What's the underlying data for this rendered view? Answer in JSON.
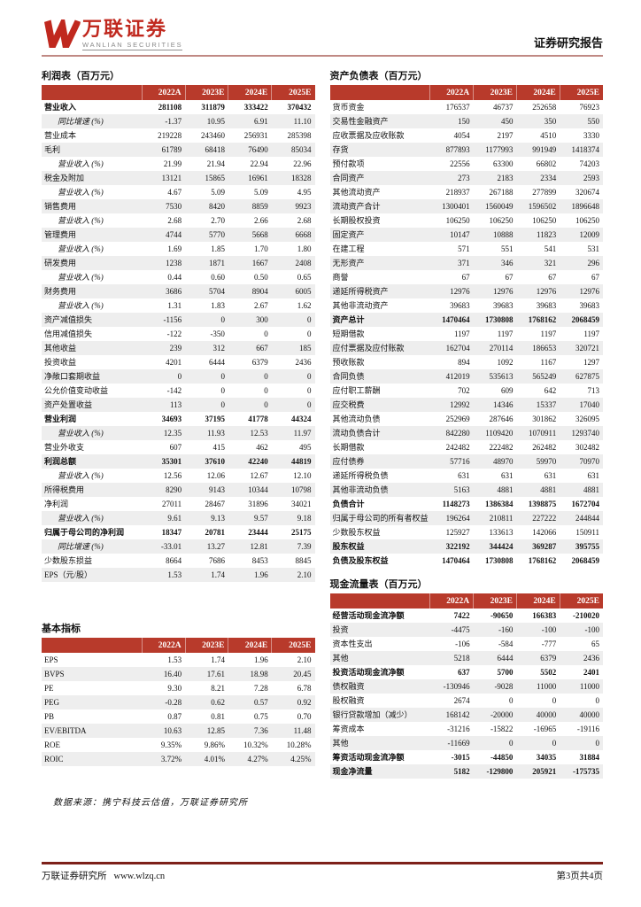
{
  "colors": {
    "accent_red": "#b83a2b",
    "logo_red": "#c0281e",
    "divider_light": "#c08984",
    "footer_line": "#7d211a",
    "row_stripe": "#eeeeee"
  },
  "header": {
    "logo": {
      "cn": "万联证券",
      "en": "WANLIAN SECURITIES"
    },
    "report_type": "证券研究报告"
  },
  "income_statement": {
    "title": "利润表（百万元）",
    "columns": [
      "2022A",
      "2023E",
      "2024E",
      "2025E"
    ],
    "rows": [
      {
        "label": "营业收入",
        "style": "bold",
        "values": [
          "281108",
          "311879",
          "333422",
          "370432"
        ]
      },
      {
        "label": "同比增速 (%)",
        "style": "sub",
        "values": [
          "-1.37",
          "10.95",
          "6.91",
          "11.10"
        ]
      },
      {
        "label": "营业成本",
        "style": "normal",
        "values": [
          "219228",
          "243460",
          "256931",
          "285398"
        ]
      },
      {
        "label": "毛利",
        "style": "normal",
        "values": [
          "61789",
          "68418",
          "76490",
          "85034"
        ]
      },
      {
        "label": "营业收入 (%)",
        "style": "sub",
        "values": [
          "21.99",
          "21.94",
          "22.94",
          "22.96"
        ]
      },
      {
        "label": "税金及附加",
        "style": "normal",
        "values": [
          "13121",
          "15865",
          "16961",
          "18328"
        ]
      },
      {
        "label": "营业收入 (%)",
        "style": "sub",
        "values": [
          "4.67",
          "5.09",
          "5.09",
          "4.95"
        ]
      },
      {
        "label": "销售费用",
        "style": "normal",
        "values": [
          "7530",
          "8420",
          "8859",
          "9923"
        ]
      },
      {
        "label": "营业收入 (%)",
        "style": "sub",
        "values": [
          "2.68",
          "2.70",
          "2.66",
          "2.68"
        ]
      },
      {
        "label": "管理费用",
        "style": "normal",
        "values": [
          "4744",
          "5770",
          "5668",
          "6668"
        ]
      },
      {
        "label": "营业收入 (%)",
        "style": "sub",
        "values": [
          "1.69",
          "1.85",
          "1.70",
          "1.80"
        ]
      },
      {
        "label": "研发费用",
        "style": "normal",
        "values": [
          "1238",
          "1871",
          "1667",
          "2408"
        ]
      },
      {
        "label": "营业收入 (%)",
        "style": "sub",
        "values": [
          "0.44",
          "0.60",
          "0.50",
          "0.65"
        ]
      },
      {
        "label": "财务费用",
        "style": "normal",
        "values": [
          "3686",
          "5704",
          "8904",
          "6005"
        ]
      },
      {
        "label": "营业收入 (%)",
        "style": "sub",
        "values": [
          "1.31",
          "1.83",
          "2.67",
          "1.62"
        ]
      },
      {
        "label": "资产减值损失",
        "style": "normal",
        "values": [
          "-1156",
          "0",
          "300",
          "0"
        ]
      },
      {
        "label": "信用减值损失",
        "style": "normal",
        "values": [
          "-122",
          "-350",
          "0",
          "0"
        ]
      },
      {
        "label": "其他收益",
        "style": "normal",
        "values": [
          "239",
          "312",
          "667",
          "185"
        ]
      },
      {
        "label": "投资收益",
        "style": "normal",
        "values": [
          "4201",
          "6444",
          "6379",
          "2436"
        ]
      },
      {
        "label": "净敞口套期收益",
        "style": "normal",
        "values": [
          "0",
          "0",
          "0",
          "0"
        ]
      },
      {
        "label": "公允价值变动收益",
        "style": "normal",
        "values": [
          "-142",
          "0",
          "0",
          "0"
        ]
      },
      {
        "label": "资产处置收益",
        "style": "normal",
        "values": [
          "113",
          "0",
          "0",
          "0"
        ]
      },
      {
        "label": "营业利润",
        "style": "bold",
        "values": [
          "34693",
          "37195",
          "41778",
          "44324"
        ]
      },
      {
        "label": "营业收入 (%)",
        "style": "sub",
        "values": [
          "12.35",
          "11.93",
          "12.53",
          "11.97"
        ]
      },
      {
        "label": "营业外收支",
        "style": "normal",
        "values": [
          "607",
          "415",
          "462",
          "495"
        ]
      },
      {
        "label": "利润总额",
        "style": "bold",
        "values": [
          "35301",
          "37610",
          "42240",
          "44819"
        ]
      },
      {
        "label": "营业收入 (%)",
        "style": "sub",
        "values": [
          "12.56",
          "12.06",
          "12.67",
          "12.10"
        ]
      },
      {
        "label": "所得税费用",
        "style": "normal",
        "values": [
          "8290",
          "9143",
          "10344",
          "10798"
        ]
      },
      {
        "label": "净利润",
        "style": "normal",
        "values": [
          "27011",
          "28467",
          "31896",
          "34021"
        ]
      },
      {
        "label": "营业收入 (%)",
        "style": "sub",
        "values": [
          "9.61",
          "9.13",
          "9.57",
          "9.18"
        ]
      },
      {
        "label": "归属于母公司的净利润",
        "style": "bold",
        "values": [
          "18347",
          "20781",
          "23444",
          "25175"
        ]
      },
      {
        "label": "同比增速 (%)",
        "style": "sub",
        "values": [
          "-33.01",
          "13.27",
          "12.81",
          "7.39"
        ]
      },
      {
        "label": "少数股东损益",
        "style": "normal",
        "values": [
          "8664",
          "7686",
          "8453",
          "8845"
        ]
      },
      {
        "label": "EPS（元/股）",
        "style": "normal",
        "values": [
          "1.53",
          "1.74",
          "1.96",
          "2.10"
        ]
      }
    ]
  },
  "basic_indicators": {
    "title": "基本指标",
    "columns": [
      "2022A",
      "2023E",
      "2024E",
      "2025E"
    ],
    "rows": [
      {
        "label": "EPS",
        "style": "normal",
        "values": [
          "1.53",
          "1.74",
          "1.96",
          "2.10"
        ]
      },
      {
        "label": "BVPS",
        "style": "normal",
        "values": [
          "16.40",
          "17.61",
          "18.98",
          "20.45"
        ]
      },
      {
        "label": "PE",
        "style": "normal",
        "values": [
          "9.30",
          "8.21",
          "7.28",
          "6.78"
        ]
      },
      {
        "label": "PEG",
        "style": "normal",
        "values": [
          "-0.28",
          "0.62",
          "0.57",
          "0.92"
        ]
      },
      {
        "label": "PB",
        "style": "normal",
        "values": [
          "0.87",
          "0.81",
          "0.75",
          "0.70"
        ]
      },
      {
        "label": "EV/EBITDA",
        "style": "normal",
        "values": [
          "10.63",
          "12.85",
          "7.36",
          "11.48"
        ]
      },
      {
        "label": "ROE",
        "style": "normal",
        "values": [
          "9.35%",
          "9.86%",
          "10.32%",
          "10.28%"
        ]
      },
      {
        "label": "ROIC",
        "style": "normal",
        "values": [
          "3.72%",
          "4.01%",
          "4.27%",
          "4.25%"
        ]
      }
    ]
  },
  "balance_sheet": {
    "title": "资产负债表（百万元）",
    "columns": [
      "2022A",
      "2023E",
      "2024E",
      "2025E"
    ],
    "rows": [
      {
        "label": "货币资金",
        "style": "normal",
        "values": [
          "176537",
          "46737",
          "252658",
          "76923"
        ]
      },
      {
        "label": "交易性金融资产",
        "style": "normal",
        "values": [
          "150",
          "450",
          "350",
          "550"
        ]
      },
      {
        "label": "应收票据及应收账款",
        "style": "normal",
        "values": [
          "4054",
          "2197",
          "4510",
          "3330"
        ]
      },
      {
        "label": "存货",
        "style": "normal",
        "values": [
          "877893",
          "1177993",
          "991949",
          "1418374"
        ]
      },
      {
        "label": "预付款项",
        "style": "normal",
        "values": [
          "22556",
          "63300",
          "66802",
          "74203"
        ]
      },
      {
        "label": "合同资产",
        "style": "normal",
        "values": [
          "273",
          "2183",
          "2334",
          "2593"
        ]
      },
      {
        "label": "其他流动资产",
        "style": "normal",
        "values": [
          "218937",
          "267188",
          "277899",
          "320674"
        ]
      },
      {
        "label": "流动资产合计",
        "style": "normal",
        "values": [
          "1300401",
          "1560049",
          "1596502",
          "1896648"
        ]
      },
      {
        "label": "长期股权投资",
        "style": "normal",
        "values": [
          "106250",
          "106250",
          "106250",
          "106250"
        ]
      },
      {
        "label": "固定资产",
        "style": "normal",
        "values": [
          "10147",
          "10888",
          "11823",
          "12009"
        ]
      },
      {
        "label": "在建工程",
        "style": "normal",
        "values": [
          "571",
          "551",
          "541",
          "531"
        ]
      },
      {
        "label": "无形资产",
        "style": "normal",
        "values": [
          "371",
          "346",
          "321",
          "296"
        ]
      },
      {
        "label": "商誉",
        "style": "normal",
        "values": [
          "67",
          "67",
          "67",
          "67"
        ]
      },
      {
        "label": "递延所得税资产",
        "style": "normal",
        "values": [
          "12976",
          "12976",
          "12976",
          "12976"
        ]
      },
      {
        "label": "其他非流动资产",
        "style": "normal",
        "values": [
          "39683",
          "39683",
          "39683",
          "39683"
        ]
      },
      {
        "label": "资产总计",
        "style": "bold",
        "values": [
          "1470464",
          "1730808",
          "1768162",
          "2068459"
        ]
      },
      {
        "label": "短期借款",
        "style": "normal",
        "values": [
          "1197",
          "1197",
          "1197",
          "1197"
        ]
      },
      {
        "label": "应付票据及应付账款",
        "style": "normal",
        "values": [
          "162704",
          "270114",
          "186653",
          "320721"
        ]
      },
      {
        "label": "预收账款",
        "style": "normal",
        "values": [
          "894",
          "1092",
          "1167",
          "1297"
        ]
      },
      {
        "label": "合同负债",
        "style": "normal",
        "values": [
          "412019",
          "535613",
          "565249",
          "627875"
        ]
      },
      {
        "label": "应付职工薪酬",
        "style": "normal",
        "values": [
          "702",
          "609",
          "642",
          "713"
        ]
      },
      {
        "label": "应交税费",
        "style": "normal",
        "values": [
          "12992",
          "14346",
          "15337",
          "17040"
        ]
      },
      {
        "label": "其他流动负债",
        "style": "normal",
        "values": [
          "252969",
          "287646",
          "301862",
          "326095"
        ]
      },
      {
        "label": "流动负债合计",
        "style": "normal",
        "values": [
          "842280",
          "1109420",
          "1070911",
          "1293740"
        ]
      },
      {
        "label": "长期借款",
        "style": "normal",
        "values": [
          "242482",
          "222482",
          "262482",
          "302482"
        ]
      },
      {
        "label": "应付债券",
        "style": "normal",
        "values": [
          "57716",
          "48970",
          "59970",
          "70970"
        ]
      },
      {
        "label": "递延所得税负债",
        "style": "normal",
        "values": [
          "631",
          "631",
          "631",
          "631"
        ]
      },
      {
        "label": "其他非流动负债",
        "style": "normal",
        "values": [
          "5163",
          "4881",
          "4881",
          "4881"
        ]
      },
      {
        "label": "负债合计",
        "style": "bold",
        "values": [
          "1148273",
          "1386384",
          "1398875",
          "1672704"
        ]
      },
      {
        "label": "归属于母公司的所有者权益",
        "style": "normal",
        "values": [
          "196264",
          "210811",
          "227222",
          "244844"
        ]
      },
      {
        "label": "少数股东权益",
        "style": "normal",
        "values": [
          "125927",
          "133613",
          "142066",
          "150911"
        ]
      },
      {
        "label": "股东权益",
        "style": "bold",
        "values": [
          "322192",
          "344424",
          "369287",
          "395755"
        ]
      },
      {
        "label": "负债及股东权益",
        "style": "bold",
        "values": [
          "1470464",
          "1730808",
          "1768162",
          "2068459"
        ]
      }
    ]
  },
  "cash_flow": {
    "title": "现金流量表（百万元）",
    "columns": [
      "2022A",
      "2023E",
      "2024E",
      "2025E"
    ],
    "rows": [
      {
        "label": "经营活动现金流净额",
        "style": "bold",
        "values": [
          "7422",
          "-90650",
          "166383",
          "-210020"
        ]
      },
      {
        "label": "投资",
        "style": "normal",
        "values": [
          "-4475",
          "-160",
          "-100",
          "-100"
        ]
      },
      {
        "label": "资本性支出",
        "style": "normal",
        "values": [
          "-106",
          "-584",
          "-777",
          "65"
        ]
      },
      {
        "label": "其他",
        "style": "normal",
        "values": [
          "5218",
          "6444",
          "6379",
          "2436"
        ]
      },
      {
        "label": "投资活动现金流净额",
        "style": "bold",
        "values": [
          "637",
          "5700",
          "5502",
          "2401"
        ]
      },
      {
        "label": "债权融资",
        "style": "normal",
        "values": [
          "-130946",
          "-9028",
          "11000",
          "11000"
        ]
      },
      {
        "label": "股权融资",
        "style": "normal",
        "values": [
          "2674",
          "0",
          "0",
          "0"
        ]
      },
      {
        "label": "银行贷款增加（减少）",
        "style": "normal",
        "values": [
          "168142",
          "-20000",
          "40000",
          "40000"
        ]
      },
      {
        "label": "筹资成本",
        "style": "normal",
        "values": [
          "-31216",
          "-15822",
          "-16965",
          "-19116"
        ]
      },
      {
        "label": "其他",
        "style": "normal",
        "values": [
          "-11669",
          "0",
          "0",
          "0"
        ]
      },
      {
        "label": "筹资活动现金流净额",
        "style": "bold",
        "values": [
          "-3015",
          "-44850",
          "34035",
          "31884"
        ]
      },
      {
        "label": "现金净流量",
        "style": "bold",
        "values": [
          "5182",
          "-129800",
          "205921",
          "-175735"
        ]
      }
    ]
  },
  "source_note": "数据来源：携宁科技云估值，万联证券研究所",
  "footer": {
    "org": "万联证券研究所",
    "url": "www.wlzq.cn",
    "page": "第3页共4页"
  }
}
